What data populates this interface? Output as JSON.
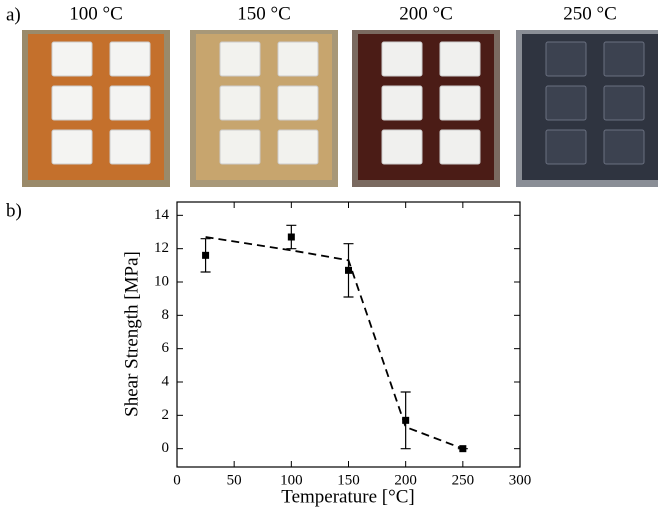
{
  "panel_labels": [
    "a)",
    "b)"
  ],
  "photo_labels": [
    "100 °C",
    "150 °C",
    "200 °C",
    "250 °C"
  ],
  "chart_data": {
    "type": "scatter",
    "x_label": "Temperature [°C]",
    "y_label": "Shear Strength [MPa]",
    "x": [
      25,
      100,
      150,
      200,
      250
    ],
    "values": [
      11.6,
      12.7,
      10.7,
      1.7,
      0
    ],
    "errors": [
      1.0,
      0.7,
      1.6,
      1.7,
      0
    ],
    "color": "#000000",
    "trend_line": {
      "x": [
        25,
        100,
        150,
        200,
        250
      ],
      "values": [
        12.7,
        11.9,
        11.3,
        1.3,
        0
      ]
    },
    "xlim": [
      0,
      300
    ],
    "xticks": [
      0,
      50,
      100,
      150,
      200,
      250,
      300
    ],
    "ylim": [
      -1.1,
      14.8
    ],
    "yticks": [
      0,
      2,
      4,
      6,
      8,
      10,
      12,
      14
    ]
  }
}
